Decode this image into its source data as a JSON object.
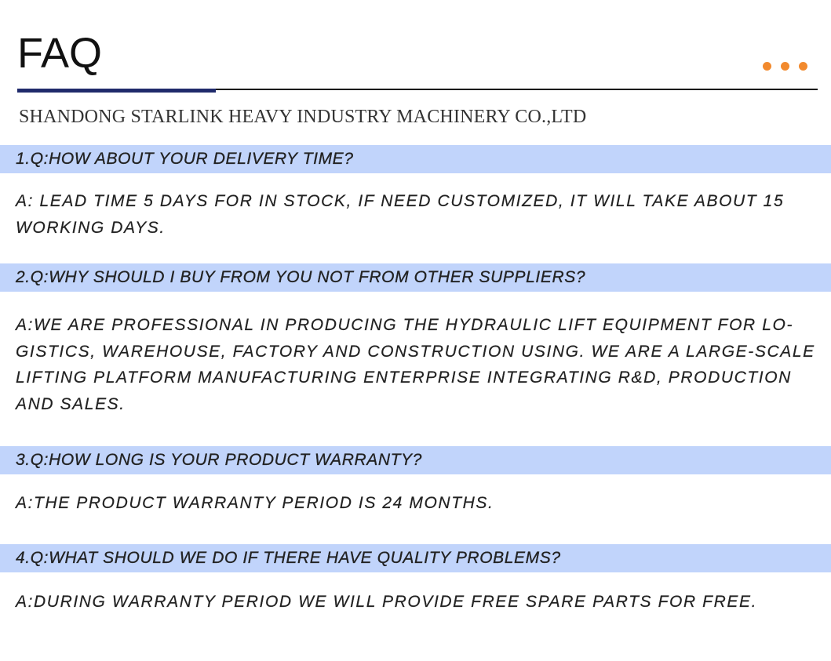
{
  "header": {
    "title": "FAQ",
    "company": "SHANDONG STARLINK HEAVY INDUSTRY MACHINERY CO.,LTD",
    "accent_color": "#f28a2e",
    "band_color": "#c1d4fb",
    "rule_color": "#1f2a6b"
  },
  "faq": [
    {
      "question": "1.Q:HOW ABOUT YOUR DELIVERY TIME?",
      "answer_lines": [
        "A: LEAD TIME 5 DAYS FOR IN STOCK, IF NEED CUSTOMIZED, IT WILL TAKE ABOUT 15",
        "WORKING DAYS."
      ]
    },
    {
      "question": "2.Q:WHY SHOULD I BUY FROM YOU NOT FROM OTHER SUPPLIERS?",
      "answer_lines": [
        "A:WE ARE PROFESSIONAL IN PRODUCING THE HYDRAULIC LIFT EQUIPMENT FOR LO-",
        "GISTICS, WAREHOUSE, FACTORY AND CONSTRUCTION USING. WE ARE A LARGE-SCALE",
        "LIFTING PLATFORM MANUFACTURING ENTERPRISE INTEGRATING R&D, PRODUCTION",
        "AND SALES."
      ]
    },
    {
      "question": "3.Q:HOW LONG IS YOUR PRODUCT WARRANTY?",
      "answer_lines": [
        "A:THE PRODUCT WARRANTY PERIOD IS 24 MONTHS."
      ]
    },
    {
      "question": "4.Q:WHAT SHOULD WE DO IF THERE HAVE QUALITY PROBLEMS?",
      "answer_lines": [
        "A:DURING WARRANTY PERIOD WE WILL PROVIDE FREE SPARE PARTS FOR FREE."
      ]
    }
  ]
}
